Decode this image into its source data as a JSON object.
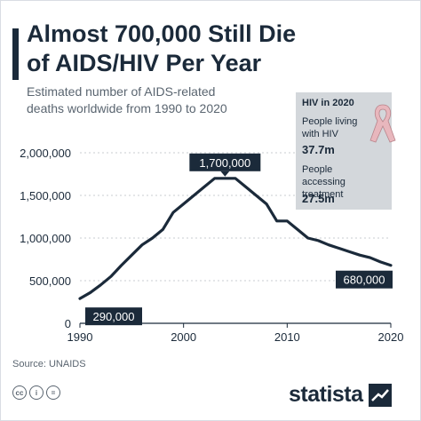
{
  "header": {
    "title_line1": "Almost 700,000 Still Die",
    "title_line2": "of AIDS/HIV Per Year",
    "subtitle_line1": "Estimated number of AIDS-related",
    "subtitle_line2": "deaths worldwide from 1990 to 2020"
  },
  "info_box": {
    "heading": "HIV in 2020",
    "living_label_1": "People living",
    "living_label_2": "with HIV",
    "living_value": "37.7m",
    "treatment_label_1": "People accessing",
    "treatment_label_2": "treatment",
    "treatment_value": "27.5m",
    "ribbon_icon": "awareness-ribbon-icon",
    "ribbon_color": "#e8b7bd"
  },
  "footer": {
    "source": "Source: UNAIDS",
    "cc_icons": [
      "cc",
      "i",
      "="
    ],
    "logo": "statista"
  },
  "colors": {
    "line": "#1b2a3a",
    "callout_bg": "#1b2a3a",
    "callout_text": "#ffffff",
    "grid": "#c9cdd2"
  },
  "chart_data": {
    "type": "line",
    "x": [
      1990,
      1991,
      1992,
      1993,
      1994,
      1995,
      1996,
      1997,
      1998,
      1999,
      2000,
      2001,
      2002,
      2003,
      2004,
      2005,
      2006,
      2007,
      2008,
      2009,
      2010,
      2011,
      2012,
      2013,
      2014,
      2015,
      2016,
      2017,
      2018,
      2019,
      2020
    ],
    "series": [
      {
        "values": [
          290000,
          360000,
          450000,
          550000,
          680000,
          800000,
          920000,
          1000000,
          1100000,
          1300000,
          1400000,
          1500000,
          1600000,
          1700000,
          1700000,
          1700000,
          1600000,
          1500000,
          1400000,
          1200000,
          1200000,
          1100000,
          1000000,
          970000,
          920000,
          880000,
          840000,
          800000,
          770000,
          720000,
          680000
        ]
      }
    ],
    "title": "Almost 700,000 Still Die of AIDS/HIV Per Year",
    "subtitle": "Estimated number of AIDS-related deaths worldwide from 1990 to 2020",
    "xlabel": "",
    "ylabel": "",
    "xlim": [
      1990,
      2020
    ],
    "ylim": [
      0,
      2000000
    ],
    "x_ticks": [
      1990,
      2000,
      2010,
      2020
    ],
    "y_ticks": [
      0,
      500000,
      1000000,
      1500000,
      2000000
    ],
    "y_tick_labels": [
      "0",
      "500,000",
      "1,000,000",
      "1,500,000",
      "2,000,000"
    ],
    "grid": true,
    "annotations": [
      {
        "x": 1990,
        "y": 290000,
        "text": "290,000",
        "placement": "below-right"
      },
      {
        "x": 2004,
        "y": 1700000,
        "text": "1,700,000",
        "placement": "above"
      },
      {
        "x": 2020,
        "y": 680000,
        "text": "680,000",
        "placement": "below-left"
      }
    ]
  }
}
